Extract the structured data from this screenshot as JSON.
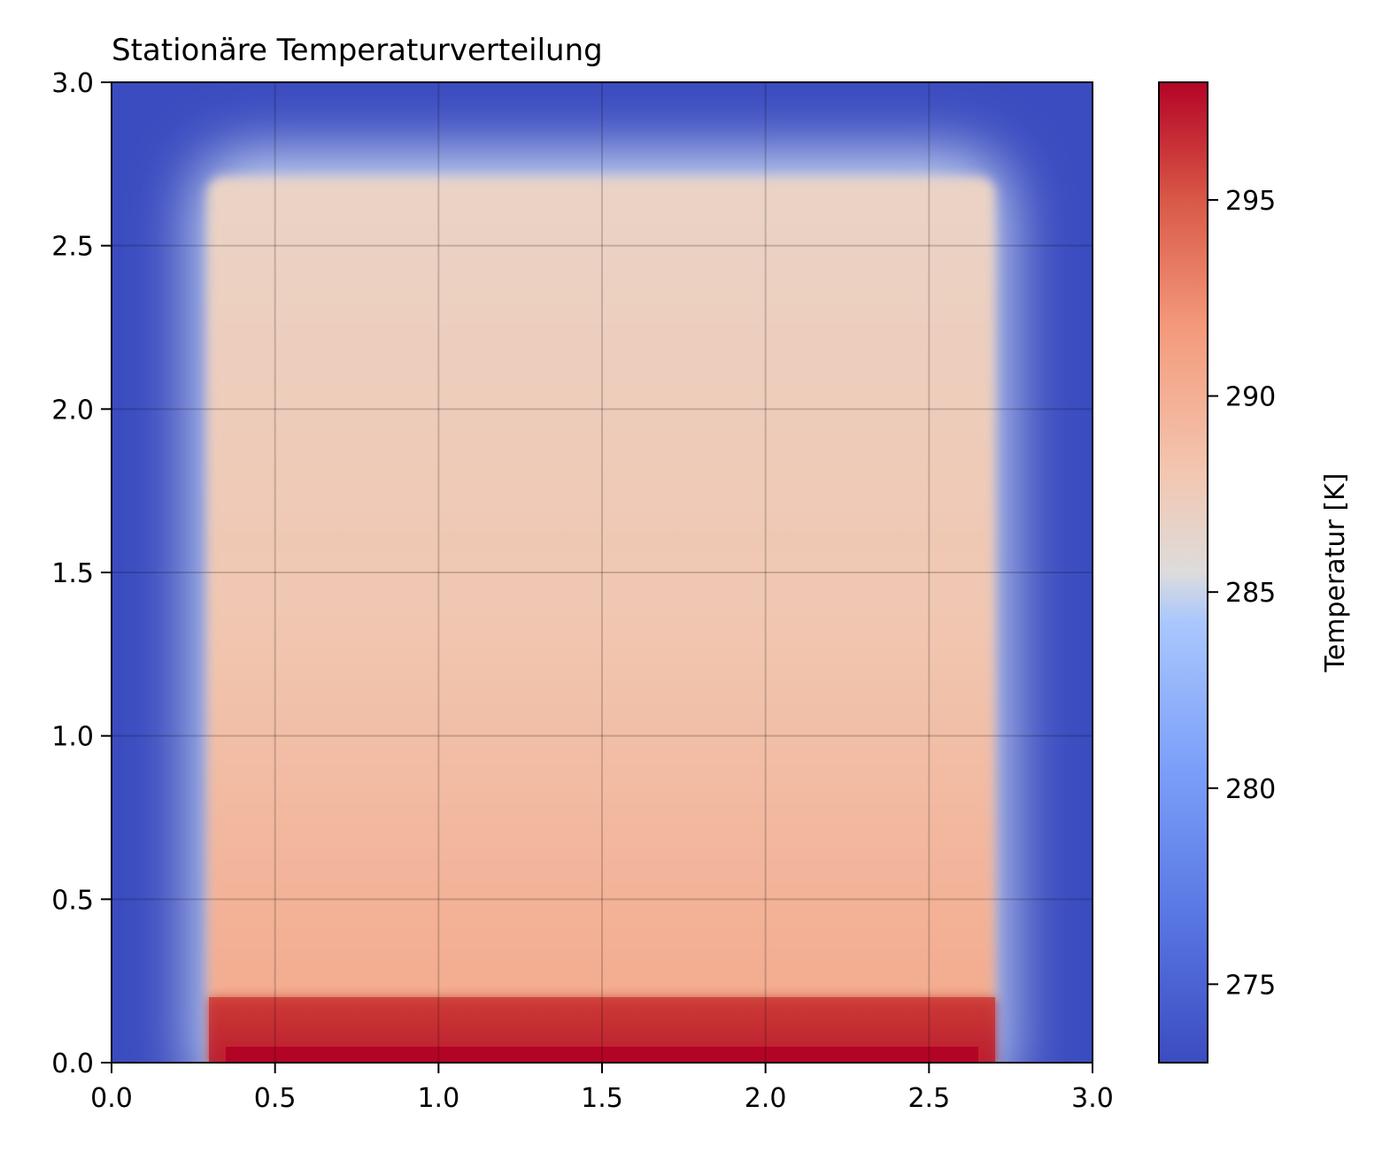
{
  "chart_data": {
    "type": "heatmap",
    "title": "Stationäre Temperaturverteilung",
    "xlabel": "",
    "ylabel": "",
    "xlim": [
      0.0,
      3.0
    ],
    "ylim": [
      0.0,
      3.0
    ],
    "x_ticks": [
      "0.0",
      "0.5",
      "1.0",
      "1.5",
      "2.0",
      "2.5",
      "3.0"
    ],
    "y_ticks": [
      "0.0",
      "0.5",
      "1.0",
      "1.5",
      "2.0",
      "2.5",
      "3.0"
    ],
    "grid": true,
    "colormap": "coolwarm",
    "colorbar": {
      "label": "Temperatur [K]",
      "range": [
        273.0,
        298.0
      ],
      "ticks": [
        "275",
        "280",
        "285",
        "290",
        "295"
      ]
    },
    "field_regions": [
      {
        "region": "walls (x<0.3, x>2.7, y>2.7)",
        "temperature_K": 273.0
      },
      {
        "region": "interior at y=2.7",
        "temperature_K": 286.8
      },
      {
        "region": "interior at y=1.5",
        "temperature_K": 289.2
      },
      {
        "region": "interior at y=0.25",
        "temperature_K": 291.5
      },
      {
        "region": "heater zone 0.3<x<2.7, 0<y<0.2",
        "temperature_K": 296.0
      },
      {
        "region": "heater 0.35<x<2.65, 0<y<0.05",
        "temperature_K": 298.0
      }
    ]
  }
}
